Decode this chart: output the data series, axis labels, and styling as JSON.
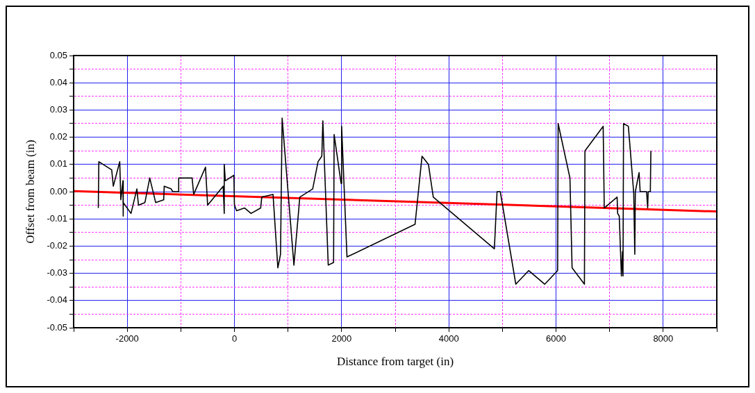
{
  "chart_data": {
    "type": "line",
    "xlabel": "Distance from target (in)",
    "ylabel": "Offset from beam (in)",
    "xlim": [
      -3000,
      9000
    ],
    "ylim": [
      -0.05,
      0.05
    ],
    "xticks": [
      {
        "value": -3000,
        "label": null
      },
      {
        "value": -2000,
        "label": "-2000"
      },
      {
        "value": -1000,
        "label": null
      },
      {
        "value": 0,
        "label": "0"
      },
      {
        "value": 1000,
        "label": null
      },
      {
        "value": 2000,
        "label": "2000"
      },
      {
        "value": 3000,
        "label": null
      },
      {
        "value": 4000,
        "label": "4000"
      },
      {
        "value": 5000,
        "label": null
      },
      {
        "value": 6000,
        "label": "6000"
      },
      {
        "value": 7000,
        "label": null
      },
      {
        "value": 8000,
        "label": "8000"
      },
      {
        "value": 9000,
        "label": null
      }
    ],
    "yticks": [
      {
        "value": -0.05,
        "label": "-0.05"
      },
      {
        "value": -0.045,
        "label": null
      },
      {
        "value": -0.04,
        "label": "-0.04"
      },
      {
        "value": -0.035,
        "label": null
      },
      {
        "value": -0.03,
        "label": "-0.03"
      },
      {
        "value": -0.025,
        "label": null
      },
      {
        "value": -0.02,
        "label": "-0.02"
      },
      {
        "value": -0.015,
        "label": null
      },
      {
        "value": -0.01,
        "label": "-0.01"
      },
      {
        "value": -0.005,
        "label": null
      },
      {
        "value": 0,
        "label": "0.00"
      },
      {
        "value": 0.005,
        "label": null
      },
      {
        "value": 0.01,
        "label": "0.01"
      },
      {
        "value": 0.015,
        "label": null
      },
      {
        "value": 0.02,
        "label": "0.02"
      },
      {
        "value": 0.025,
        "label": null
      },
      {
        "value": 0.03,
        "label": "0.03"
      },
      {
        "value": 0.035,
        "label": null
      },
      {
        "value": 0.04,
        "label": "0.04"
      },
      {
        "value": 0.045,
        "label": null
      },
      {
        "value": 0.05,
        "label": "0.05"
      }
    ],
    "grid": true,
    "marker": "none",
    "line_style": "solid",
    "series": [
      {
        "color": "#000000",
        "x": [
          -2540,
          -2530,
          -2290,
          -2260,
          -2140,
          -2120,
          -2080,
          -2080,
          -2070,
          -1930,
          -1820,
          -1790,
          -1670,
          -1580,
          -1470,
          -1320,
          -1310,
          -1180,
          -1150,
          -1040,
          -1040,
          -790,
          -760,
          -540,
          -500,
          -210,
          -190,
          -190,
          -170,
          -10,
          0,
          40,
          190,
          310,
          490,
          510,
          720,
          810,
          860,
          890,
          1110,
          1220,
          1460,
          1560,
          1630,
          1650,
          1750,
          1850,
          1860,
          1990,
          2000,
          2100,
          3370,
          3500,
          3620,
          3710,
          4850,
          4900,
          4960,
          5250,
          5490,
          5790,
          6030,
          6040,
          6260,
          6300,
          6530,
          6540,
          6880,
          6900,
          7140,
          7150,
          7180,
          7220,
          7240,
          7250,
          7260,
          7350,
          7450,
          7470,
          7480,
          7550,
          7570,
          7690,
          7710,
          7720,
          7760,
          7770
        ],
        "values": [
          -0.006,
          0.011,
          0.008,
          0.002,
          0.011,
          -0.003,
          0.004,
          -0.009,
          -0.004,
          -0.008,
          0.001,
          -0.005,
          -0.004,
          0.005,
          -0.004,
          -0.003,
          0.002,
          0.001,
          0,
          0,
          0.005,
          0.005,
          -0.001,
          0.009,
          -0.005,
          0.002,
          -0.008,
          0.01,
          0.004,
          0.006,
          -0.005,
          -0.007,
          -0.006,
          -0.008,
          -0.006,
          -0.002,
          -0.001,
          -0.028,
          -0.023,
          0.027,
          -0.027,
          -0.002,
          0.001,
          0.011,
          0.013,
          0.026,
          -0.027,
          -0.026,
          0.021,
          0.003,
          0.024,
          -0.024,
          -0.012,
          0.013,
          0.01,
          -0.002,
          -0.021,
          0,
          0,
          -0.034,
          -0.029,
          -0.034,
          -0.029,
          0.025,
          0.005,
          -0.028,
          -0.034,
          0.015,
          0.024,
          -0.006,
          -0.002,
          -0.008,
          -0.009,
          -0.031,
          -0.022,
          -0.031,
          0.025,
          0.024,
          -0.0005,
          -0.023,
          0,
          0.007,
          0,
          0,
          -0.006,
          0,
          0,
          0.015
        ]
      },
      {
        "type": "line",
        "color": "#ff0000",
        "x": [
          -3000,
          9000
        ],
        "values": [
          0.0002,
          -0.0073
        ]
      }
    ]
  }
}
